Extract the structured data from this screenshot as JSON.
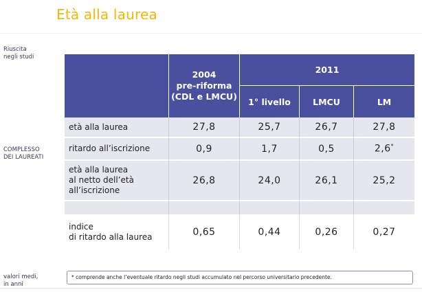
{
  "title": "Età alla laurea",
  "side_labels": {
    "top": "Riuscita\nnegli studi",
    "middle": "COMPLESSO\nDEI LAUREATI",
    "bottom": "valori medi,\nin anni"
  },
  "table": {
    "header": {
      "col_2004": "2004\npre-riforma\n(CDL e LMCU)",
      "group_2011": "2011",
      "sub_cols": [
        "1° livello",
        "LMCU",
        "LM"
      ]
    },
    "rows": [
      {
        "label": "età alla laurea",
        "values": [
          "27,8",
          "25,7",
          "26,7",
          "27,8"
        ]
      },
      {
        "label": "ritardo all’iscrizione",
        "values": [
          "0,9",
          "1,7",
          "0,5",
          "2,6"
        ],
        "last_has_star": true
      },
      {
        "label": "età alla laurea\nal netto dell’età\nall’iscrizione",
        "values": [
          "26,8",
          "24,0",
          "26,1",
          "25,2"
        ]
      },
      {
        "label": "",
        "values": [
          "",
          "",
          "",
          ""
        ]
      },
      {
        "label": "indice\ndi ritardo alla laurea",
        "values": [
          "0,65",
          "0,44",
          "0,26",
          "0,27"
        ]
      }
    ]
  },
  "footnote": "* comprende anche l’eventuale ritardo negli studi accumulato nel percorso universitario precedente.",
  "star": "*",
  "colors": {
    "title": "#f2b705",
    "header_bg": "#4a4f9e",
    "row_shaded": "#e6e6ef"
  }
}
